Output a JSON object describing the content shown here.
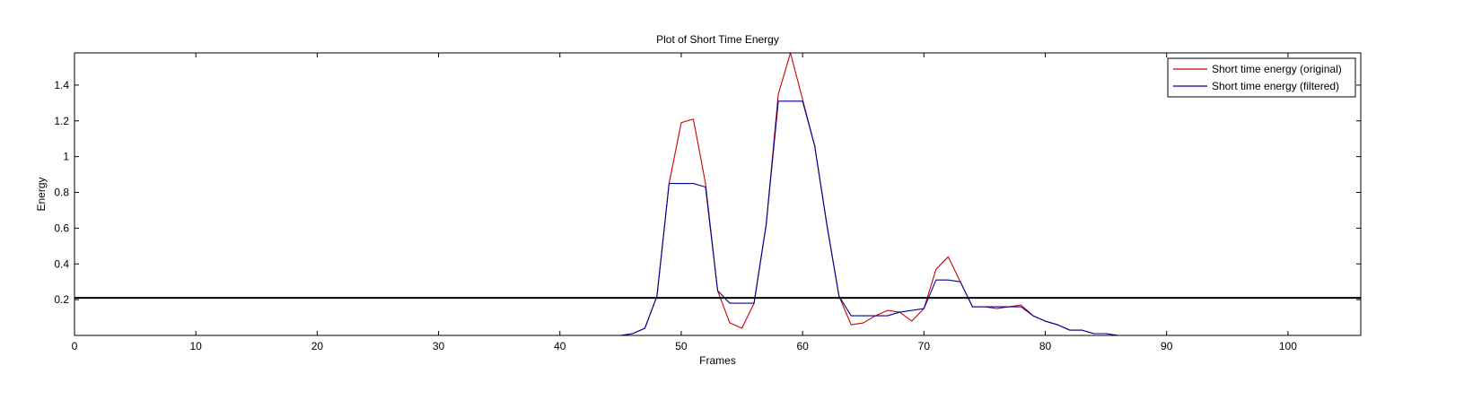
{
  "chart_data": {
    "type": "line",
    "title": "Plot of Short Time Energy",
    "xlabel": "Frames",
    "ylabel": "Energy",
    "xlim": [
      0,
      106
    ],
    "ylim": [
      0,
      1.58
    ],
    "xticks": [
      0,
      10,
      20,
      30,
      40,
      50,
      60,
      70,
      80,
      90,
      100
    ],
    "xtick_labels": [
      "0",
      "10",
      "20",
      "30",
      "40",
      "50",
      "60",
      "70",
      "80",
      "90",
      "100"
    ],
    "yticks": [
      0.2,
      0.4,
      0.6,
      0.8,
      1.0,
      1.2,
      1.4
    ],
    "ytick_labels": [
      "0.2",
      "0.4",
      "0.6",
      "0.8",
      "1",
      "1.2",
      "1.4"
    ],
    "grid": false,
    "legend_position": "top-right",
    "threshold": {
      "value": 0.21,
      "color": "#000000"
    },
    "series": [
      {
        "name": "Short time energy (original)",
        "color": "#cc0000",
        "x": [
          1,
          45,
          46,
          47,
          48,
          49,
          50,
          51,
          52,
          53,
          54,
          55,
          56,
          57,
          58,
          59,
          60,
          61,
          62,
          63,
          64,
          65,
          66,
          67,
          68,
          69,
          70,
          71,
          72,
          73,
          74,
          75,
          76,
          77,
          78,
          79,
          80,
          81,
          82,
          83,
          84,
          85,
          86,
          87,
          106
        ],
        "y": [
          0,
          0,
          0.01,
          0.04,
          0.22,
          0.85,
          1.19,
          1.21,
          0.85,
          0.25,
          0.07,
          0.04,
          0.18,
          0.62,
          1.35,
          1.58,
          1.32,
          1.06,
          0.62,
          0.22,
          0.06,
          0.07,
          0.11,
          0.14,
          0.13,
          0.08,
          0.15,
          0.37,
          0.44,
          0.3,
          0.16,
          0.16,
          0.15,
          0.16,
          0.17,
          0.11,
          0.08,
          0.06,
          0.03,
          0.03,
          0.01,
          0.01,
          0,
          0,
          0
        ]
      },
      {
        "name": "Short time energy (filtered)",
        "color": "#000099",
        "x": [
          1,
          45,
          46,
          47,
          48,
          49,
          50,
          51,
          52,
          53,
          54,
          55,
          56,
          57,
          58,
          59,
          60,
          61,
          62,
          63,
          64,
          65,
          66,
          67,
          68,
          69,
          70,
          71,
          72,
          73,
          74,
          75,
          76,
          77,
          78,
          79,
          80,
          81,
          82,
          83,
          84,
          85,
          86,
          87,
          106
        ],
        "y": [
          0,
          0,
          0.01,
          0.04,
          0.22,
          0.85,
          0.85,
          0.85,
          0.83,
          0.25,
          0.18,
          0.18,
          0.18,
          0.62,
          1.31,
          1.31,
          1.31,
          1.06,
          0.62,
          0.22,
          0.11,
          0.11,
          0.11,
          0.11,
          0.13,
          0.14,
          0.15,
          0.31,
          0.31,
          0.3,
          0.16,
          0.16,
          0.16,
          0.16,
          0.16,
          0.11,
          0.08,
          0.06,
          0.03,
          0.03,
          0.01,
          0.01,
          0,
          0,
          0
        ]
      }
    ]
  }
}
